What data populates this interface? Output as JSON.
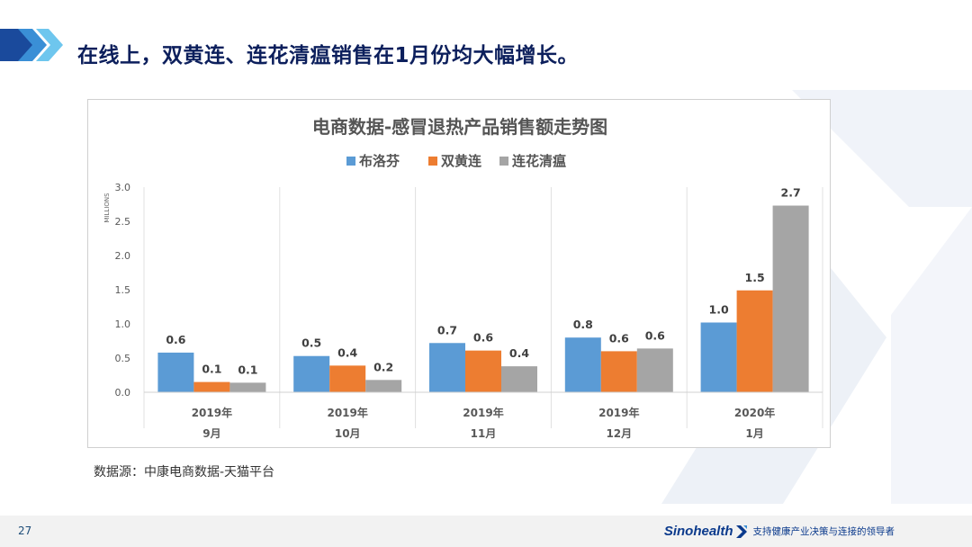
{
  "page": {
    "title": "在线上，双黄连、连花清瘟销售在1月份均大幅增长。",
    "source_note": "数据源：中康电商数据-天猫平台",
    "page_number": "27",
    "brand_logo": "Sinohealth",
    "brand_tagline": "支持健康产业决策与连接的领导者"
  },
  "colors": {
    "title": "#0c1f5c",
    "series": [
      "#5b9bd5",
      "#ed7d31",
      "#a5a5a5"
    ],
    "chevron_dark": "#1a4a9c",
    "chevron_light": "#5bb8e8",
    "deco": "#eef2f8"
  },
  "chart_data": {
    "type": "bar",
    "title": "电商数据-感冒退热产品销售额走势图",
    "ylabel": "MILLIONS",
    "ylim": [
      0,
      3.0
    ],
    "yticks": [
      "0.0",
      "0.5",
      "1.0",
      "1.5",
      "2.0",
      "2.5",
      "3.0"
    ],
    "categories": [
      {
        "year": "2019年",
        "month": "9月"
      },
      {
        "year": "2019年",
        "month": "10月"
      },
      {
        "year": "2019年",
        "month": "11月"
      },
      {
        "year": "2019年",
        "month": "12月"
      },
      {
        "year": "2020年",
        "month": "1月"
      }
    ],
    "series": [
      {
        "name": "布洛芬",
        "values": [
          0.58,
          0.53,
          0.72,
          0.8,
          1.02
        ],
        "labels": [
          "0.6",
          "0.5",
          "0.7",
          "0.8",
          "1.0"
        ]
      },
      {
        "name": "双黄连",
        "values": [
          0.15,
          0.39,
          0.61,
          0.6,
          1.49
        ],
        "labels": [
          "0.1",
          "0.4",
          "0.6",
          "0.6",
          "1.5"
        ]
      },
      {
        "name": "连花清瘟",
        "values": [
          0.14,
          0.18,
          0.38,
          0.64,
          2.73
        ],
        "labels": [
          "0.1",
          "0.2",
          "0.4",
          "0.6",
          "2.7"
        ]
      }
    ],
    "grid": false,
    "legend": "top"
  }
}
